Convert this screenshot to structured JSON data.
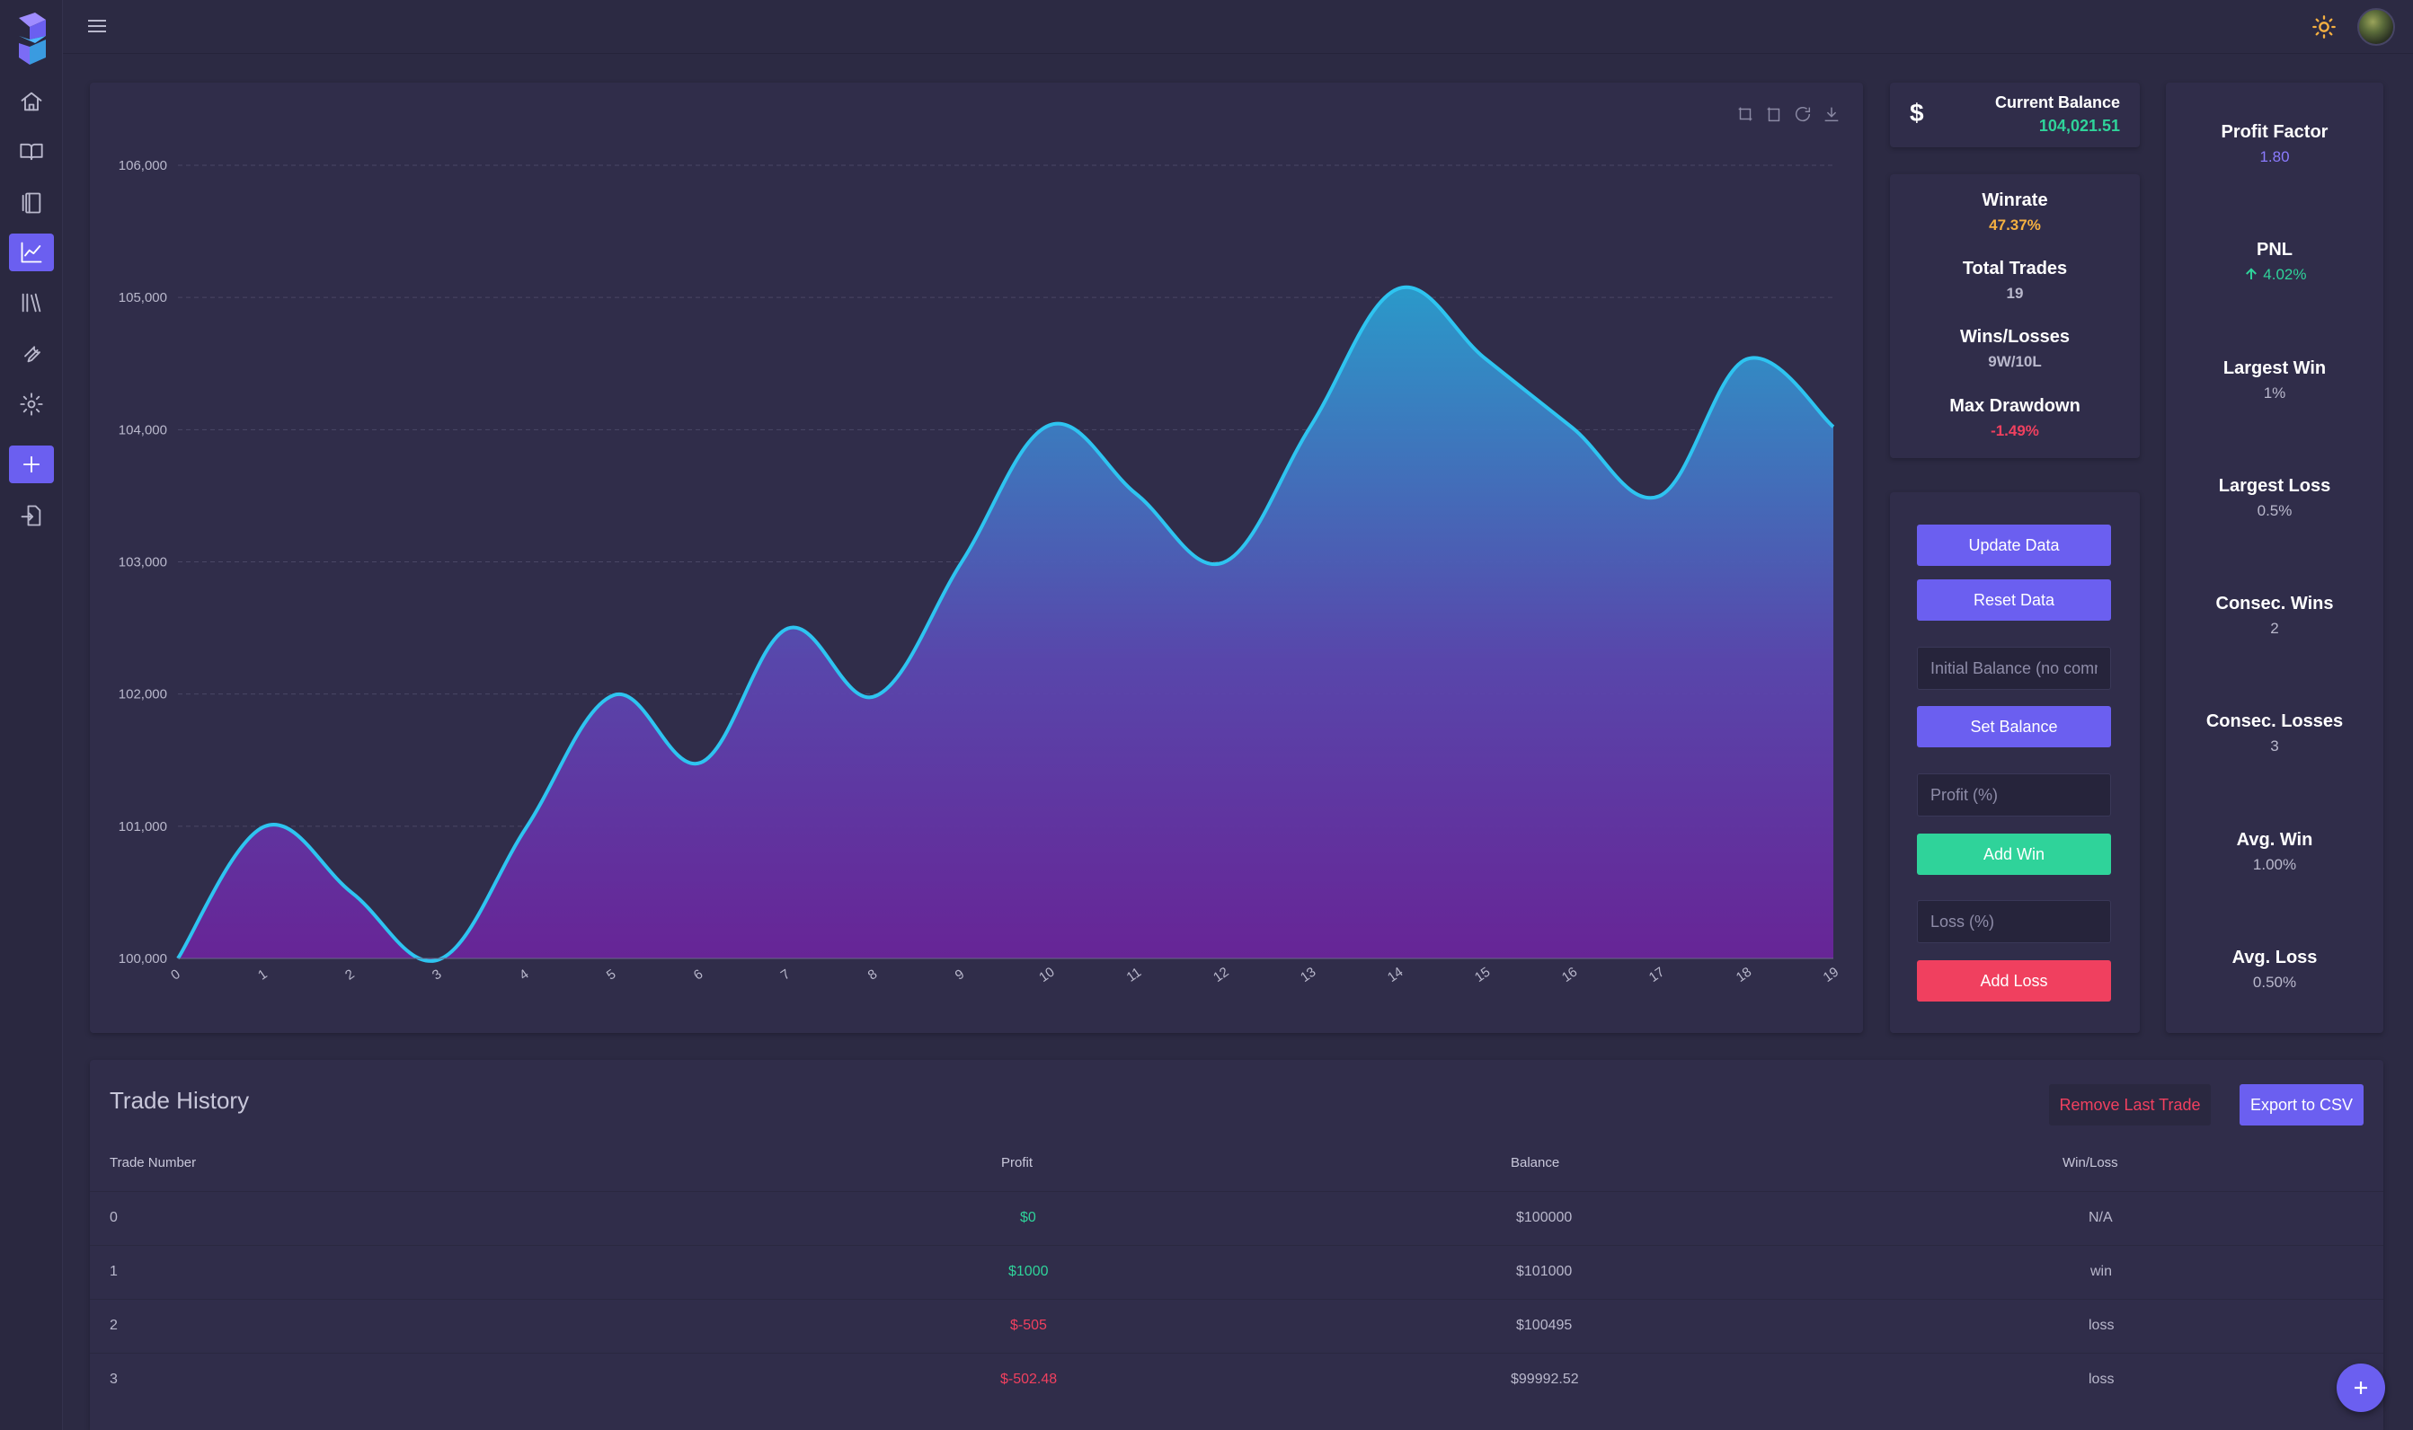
{
  "sidebar": {
    "items": [
      {
        "icon": "home-icon"
      },
      {
        "icon": "book-open-icon"
      },
      {
        "icon": "journal-icon"
      },
      {
        "icon": "chart-line-icon",
        "active": true
      },
      {
        "icon": "library-icon"
      },
      {
        "icon": "wrench-icon"
      },
      {
        "icon": "gear-icon"
      },
      {
        "icon": "plus-icon",
        "active": true
      },
      {
        "icon": "import-icon"
      }
    ]
  },
  "header": {
    "menu_icon": "hamburger-icon",
    "theme_icon": "sun-icon"
  },
  "colors": {
    "accent": "#6b5ff0",
    "positive": "#2fd39a",
    "negative": "#f0405f",
    "winrate": "#f5b041",
    "profit_factor": "#8b7bff"
  },
  "balance": {
    "symbol": "$",
    "title": "Current Balance",
    "value": "104,021.51"
  },
  "stats": {
    "winrate": {
      "label": "Winrate",
      "value": "47.37%"
    },
    "total_trades": {
      "label": "Total Trades",
      "value": "19"
    },
    "wins_losses": {
      "label": "Wins/Losses",
      "value": "9W/10L"
    },
    "max_drawdown": {
      "label": "Max Drawdown",
      "value": "-1.49%"
    }
  },
  "controls": {
    "update": "Update Data",
    "reset": "Reset Data",
    "initial_balance_placeholder": "Initial Balance (no comma)",
    "set_balance": "Set Balance",
    "profit_placeholder": "Profit (%)",
    "add_win": "Add Win",
    "loss_placeholder": "Loss (%)",
    "add_loss": "Add Loss"
  },
  "metrics": [
    {
      "label": "Profit Factor",
      "value": "1.80"
    },
    {
      "label": "PNL",
      "value": "4.02%"
    },
    {
      "label": "Largest Win",
      "value": "1%"
    },
    {
      "label": "Largest Loss",
      "value": "0.5%"
    },
    {
      "label": "Consec. Wins",
      "value": "2"
    },
    {
      "label": "Consec. Losses",
      "value": "3"
    },
    {
      "label": "Avg. Win",
      "value": "1.00%"
    },
    {
      "label": "Avg. Loss",
      "value": "0.50%"
    }
  ],
  "history": {
    "title": "Trade History",
    "remove_label": "Remove Last Trade",
    "export_label": "Export to CSV",
    "columns": [
      "Trade Number",
      "Profit",
      "Balance",
      "Win/Loss"
    ],
    "rows": [
      {
        "n": "0",
        "profit": "$0",
        "balance": "$100000",
        "result": "N/A"
      },
      {
        "n": "1",
        "profit": "$1000",
        "balance": "$101000",
        "result": "win"
      },
      {
        "n": "2",
        "profit": "$-505",
        "balance": "$100495",
        "result": "loss"
      },
      {
        "n": "3",
        "profit": "$-502.48",
        "balance": "$99992.52",
        "result": "loss"
      }
    ]
  },
  "chart_data": {
    "type": "area",
    "x": [
      0,
      1,
      2,
      3,
      4,
      5,
      6,
      7,
      8,
      9,
      10,
      11,
      12,
      13,
      14,
      15,
      16,
      17,
      18,
      19
    ],
    "values": [
      100000,
      101000,
      100495,
      99992.52,
      100992,
      101991,
      101481,
      102496,
      101983,
      103003,
      104033,
      103513,
      102995,
      104025,
      105065,
      104540,
      104017,
      103497,
      104532,
      104021.51
    ],
    "ylim": [
      100000,
      106000
    ],
    "yticks": [
      "100,000",
      "101,000",
      "102,000",
      "103,000",
      "104,000",
      "105,000",
      "106,000"
    ],
    "grid": true,
    "line_color": "#2ec4f0",
    "fill_top": "#2a9fd0",
    "fill_bottom": "#6a249a"
  }
}
